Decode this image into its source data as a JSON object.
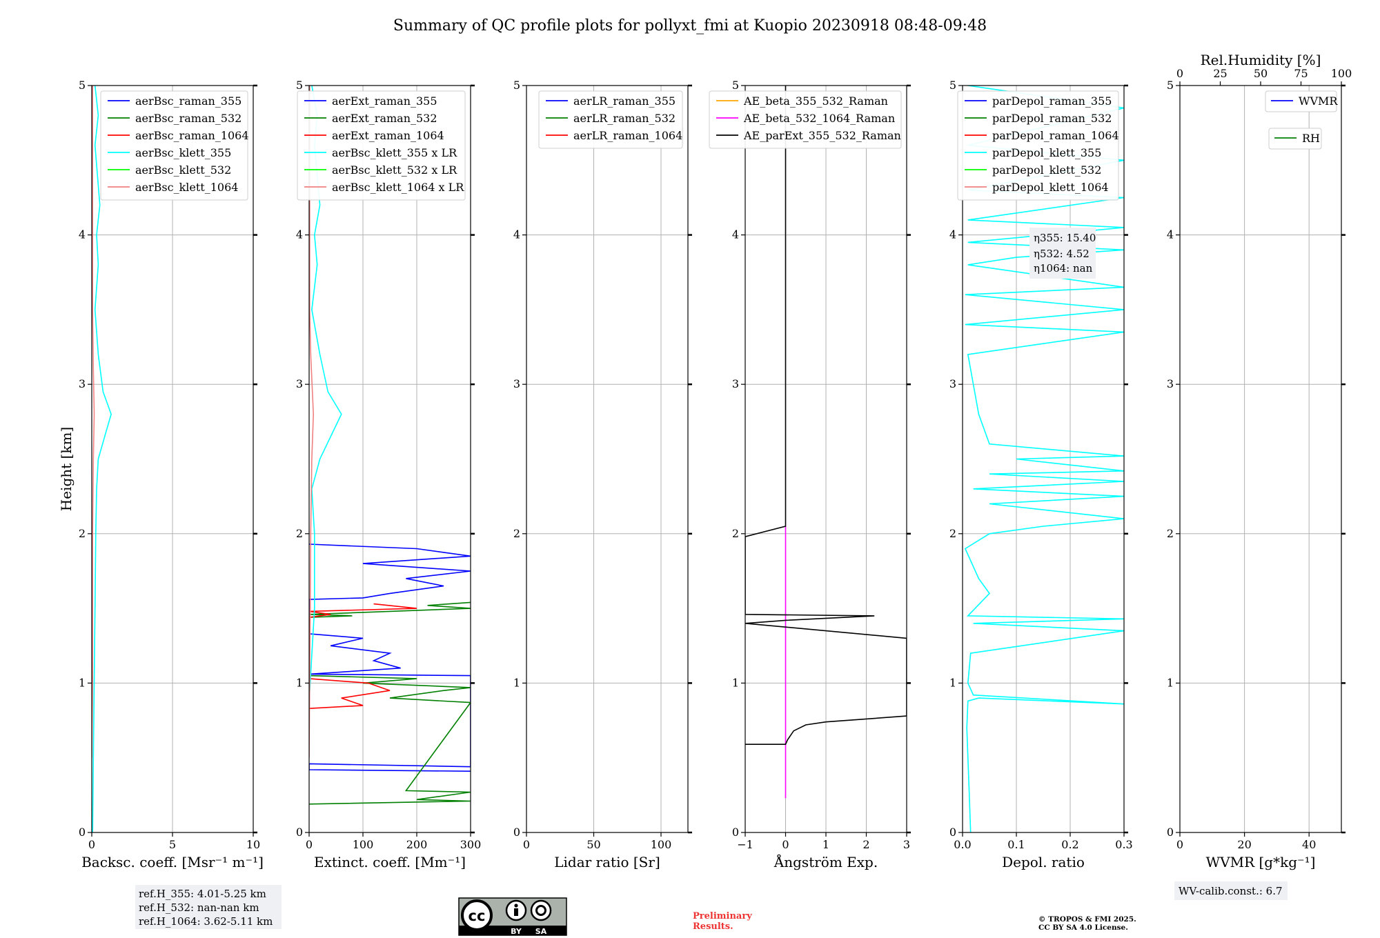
{
  "figure": {
    "title": "Summary of QC profile plots for pollyxt_fmi at Kuopio 20230918 08:48-09:48",
    "ylabel": "Height [km]",
    "ref_lines": [
      "ref.H_355: 4.01-5.25 km",
      "ref.H_532: nan-nan km",
      "ref.H_1064: 3.62-5.11 km"
    ],
    "eta_lines": [
      "η355: 15.40",
      "η532: 4.52",
      "η1064: nan"
    ],
    "wv_calib": "WV-calib.const.: 6.7",
    "preliminary": [
      "Preliminary",
      "Results."
    ],
    "copyright": [
      "© TROPOS & FMI 2025.",
      "CC BY SA 4.0 License."
    ],
    "cc_badge": {
      "by": "BY",
      "sa": "SA",
      "cc": "cc"
    },
    "colors": {
      "blue": "#0000ff",
      "green": "#008000",
      "red": "#ff0000",
      "cyan": "#00ffff",
      "lime": "#00ff00",
      "salmon": "#f08080",
      "orange": "#ffa500",
      "magenta": "#ff00ff",
      "black": "#000000"
    }
  },
  "chart_data": [
    {
      "type": "line",
      "xlabel": "Backsc. coeff. [Msr⁻¹ m⁻¹]",
      "xlim": [
        0,
        10
      ],
      "xticks": [
        "0",
        "5",
        "10"
      ],
      "ylim": [
        0,
        5
      ],
      "yticks": [
        "0",
        "1",
        "2",
        "3",
        "4",
        "5"
      ],
      "grid": true,
      "legend": "top-right",
      "series": [
        {
          "name": "aerBsc_raman_355",
          "color": "blue",
          "points": []
        },
        {
          "name": "aerBsc_raman_532",
          "color": "green",
          "points": []
        },
        {
          "name": "aerBsc_raman_1064",
          "color": "red",
          "points": []
        },
        {
          "name": "aerBsc_klett_355",
          "color": "cyan",
          "points": [
            [
              0.05,
              0
            ],
            [
              0.1,
              0.5
            ],
            [
              0.15,
              1.0
            ],
            [
              0.2,
              1.5
            ],
            [
              0.25,
              2.0
            ],
            [
              0.3,
              2.3
            ],
            [
              0.4,
              2.5
            ],
            [
              0.8,
              2.65
            ],
            [
              1.2,
              2.8
            ],
            [
              0.7,
              2.95
            ],
            [
              0.4,
              3.2
            ],
            [
              0.2,
              3.5
            ],
            [
              0.4,
              3.8
            ],
            [
              0.3,
              4.0
            ],
            [
              0.5,
              4.2
            ],
            [
              0.2,
              4.6
            ],
            [
              0.4,
              4.8
            ],
            [
              0.2,
              5.0
            ]
          ]
        },
        {
          "name": "aerBsc_klett_532",
          "color": "lime",
          "points": []
        },
        {
          "name": "aerBsc_klett_1064",
          "color": "salmon",
          "points": [
            [
              0.0,
              0.5
            ],
            [
              0.05,
              1.0
            ],
            [
              0.05,
              2.0
            ],
            [
              0.1,
              2.5
            ],
            [
              0.15,
              2.8
            ],
            [
              0.1,
              3.1
            ],
            [
              0.05,
              3.5
            ],
            [
              0.05,
              5.0
            ]
          ]
        }
      ]
    },
    {
      "type": "line",
      "xlabel": "Extinct. coeff. [Mm⁻¹]",
      "xlim": [
        0,
        300
      ],
      "xticks": [
        "0",
        "100",
        "200",
        "300"
      ],
      "ylim": [
        0,
        5
      ],
      "yticks": [
        "0",
        "1",
        "2",
        "3",
        "4",
        "5"
      ],
      "grid": true,
      "legend": "top-right",
      "series": [
        {
          "name": "aerExt_raman_355",
          "color": "blue",
          "points": [
            [
              300,
              0.41
            ],
            [
              0,
              0.42
            ],
            [
              0,
              0.46
            ],
            [
              300,
              0.44
            ],
            [
              300,
              1.05
            ],
            [
              0,
              1.06
            ],
            [
              170,
              1.1
            ],
            [
              120,
              1.15
            ],
            [
              150,
              1.2
            ],
            [
              40,
              1.25
            ],
            [
              100,
              1.3
            ],
            [
              0,
              1.33
            ],
            [
              0,
              1.56
            ],
            [
              100,
              1.57
            ],
            [
              150,
              1.6
            ],
            [
              250,
              1.65
            ],
            [
              180,
              1.7
            ],
            [
              300,
              1.75
            ],
            [
              100,
              1.8
            ],
            [
              300,
              1.85
            ],
            [
              200,
              1.9
            ],
            [
              0,
              1.93
            ]
          ]
        },
        {
          "name": "aerExt_raman_532",
          "color": "green",
          "points": [
            [
              0,
              0.19
            ],
            [
              300,
              0.21
            ],
            [
              200,
              0.22
            ],
            [
              300,
              0.27
            ],
            [
              180,
              0.28
            ],
            [
              300,
              0.87
            ],
            [
              150,
              0.9
            ],
            [
              250,
              0.95
            ],
            [
              300,
              0.97
            ],
            [
              100,
              1.0
            ],
            [
              200,
              1.03
            ],
            [
              0,
              1.05
            ],
            [
              0,
              1.44
            ],
            [
              80,
              1.45
            ],
            [
              0,
              1.46
            ],
            [
              300,
              1.5
            ],
            [
              220,
              1.52
            ],
            [
              300,
              1.54
            ]
          ]
        },
        {
          "name": "aerExt_raman_1064",
          "color": "red",
          "points": [
            [
              0,
              0.83
            ],
            [
              100,
              0.85
            ],
            [
              60,
              0.9
            ],
            [
              150,
              0.95
            ],
            [
              110,
              1.0
            ],
            [
              0,
              1.03
            ],
            [
              0,
              1.44
            ],
            [
              40,
              1.46
            ],
            [
              0,
              1.48
            ],
            [
              200,
              1.5
            ],
            [
              120,
              1.53
            ]
          ]
        },
        {
          "name": "aerBsc_klett_355 x LR",
          "color": "cyan",
          "points": [
            [
              0,
              0.88
            ],
            [
              10,
              1.5
            ],
            [
              10,
              2.0
            ],
            [
              5,
              2.3
            ],
            [
              20,
              2.5
            ],
            [
              40,
              2.65
            ],
            [
              60,
              2.8
            ],
            [
              35,
              2.95
            ],
            [
              20,
              3.2
            ],
            [
              5,
              3.5
            ],
            [
              15,
              3.8
            ],
            [
              10,
              4.0
            ],
            [
              20,
              4.2
            ],
            [
              10,
              4.6
            ],
            [
              15,
              4.8
            ],
            [
              5,
              5.0
            ]
          ]
        },
        {
          "name": "aerBsc_klett_532 x LR",
          "color": "lime",
          "points": []
        },
        {
          "name": "aerBsc_klett_1064 x LR",
          "color": "salmon",
          "points": [
            [
              0,
              0.5
            ],
            [
              2,
              1.5
            ],
            [
              3,
              2.0
            ],
            [
              5,
              2.5
            ],
            [
              8,
              2.8
            ],
            [
              3,
              3.2
            ],
            [
              1,
              3.5
            ],
            [
              1,
              5.0
            ]
          ]
        }
      ]
    },
    {
      "type": "line",
      "xlabel": "Lidar ratio [Sr]",
      "xlim": [
        0,
        120
      ],
      "xticks": [
        "0",
        "50",
        "100"
      ],
      "ylim": [
        0,
        5
      ],
      "yticks": [
        "0",
        "1",
        "2",
        "3",
        "4",
        "5"
      ],
      "grid": true,
      "legend": "top-right",
      "series": [
        {
          "name": "aerLR_raman_355",
          "color": "blue",
          "points": []
        },
        {
          "name": "aerLR_raman_532",
          "color": "green",
          "points": []
        },
        {
          "name": "aerLR_raman_1064",
          "color": "red",
          "points": []
        }
      ]
    },
    {
      "type": "line",
      "xlabel": "Ångström Exp.",
      "xlim": [
        -1,
        3
      ],
      "xticks": [
        "−1",
        "0",
        "1",
        "2",
        "3"
      ],
      "ylim": [
        0,
        5
      ],
      "yticks": [
        "0",
        "1",
        "2",
        "3",
        "4",
        "5"
      ],
      "grid": true,
      "legend": "top-right",
      "series": [
        {
          "name": "AE_beta_355_532_Raman",
          "color": "orange",
          "points": []
        },
        {
          "name": "AE_beta_532_1064_Raman",
          "color": "magenta",
          "points": [
            [
              0,
              0.23
            ],
            [
              0,
              2.05
            ]
          ]
        },
        {
          "name": "AE_parExt_355_532_Raman",
          "color": "black",
          "points": [
            [
              -1,
              0.59
            ],
            [
              0,
              0.59
            ],
            [
              0.05,
              0.62
            ],
            [
              0.2,
              0.68
            ],
            [
              0.5,
              0.72
            ],
            [
              1,
              0.74
            ],
            [
              2,
              0.76
            ],
            [
              3,
              0.78
            ],
            [
              3,
              1.3
            ],
            [
              -1,
              1.4
            ],
            [
              0,
              1.42
            ],
            [
              2.2,
              1.45
            ],
            [
              -1,
              1.46
            ],
            [
              -1,
              1.98
            ],
            [
              0,
              2.05
            ],
            [
              0,
              5.0
            ]
          ]
        }
      ]
    },
    {
      "type": "line",
      "xlabel": "Depol. ratio",
      "xlim": [
        0,
        0.3
      ],
      "xticks": [
        "0.0",
        "0.1",
        "0.2",
        "0.3"
      ],
      "ylim": [
        0,
        5
      ],
      "yticks": [
        "0",
        "1",
        "2",
        "3",
        "4",
        "5"
      ],
      "grid": true,
      "legend": "top-right",
      "series": [
        {
          "name": "parDepol_raman_355",
          "color": "blue",
          "points": []
        },
        {
          "name": "parDepol_raman_532",
          "color": "green",
          "points": []
        },
        {
          "name": "parDepol_raman_1064",
          "color": "red",
          "points": []
        },
        {
          "name": "parDepol_klett_355",
          "color": "cyan",
          "points": [
            [
              0.015,
              0.0
            ],
            [
              0.012,
              0.3
            ],
            [
              0.008,
              0.7
            ],
            [
              0.01,
              0.88
            ],
            [
              0.03,
              0.9
            ],
            [
              0.3,
              0.86
            ],
            [
              0.02,
              0.92
            ],
            [
              0.01,
              1.0
            ],
            [
              0.015,
              1.2
            ],
            [
              0.3,
              1.35
            ],
            [
              0.02,
              1.4
            ],
            [
              0.3,
              1.43
            ],
            [
              0.01,
              1.45
            ],
            [
              0.05,
              1.6
            ],
            [
              0.03,
              1.7
            ],
            [
              0.005,
              1.9
            ],
            [
              0.05,
              2.0
            ],
            [
              0.15,
              2.05
            ],
            [
              0.3,
              2.1
            ],
            [
              0.05,
              2.2
            ],
            [
              0.3,
              2.25
            ],
            [
              0.02,
              2.3
            ],
            [
              0.3,
              2.35
            ],
            [
              0.05,
              2.4
            ],
            [
              0.3,
              2.42
            ],
            [
              0.1,
              2.5
            ],
            [
              0.3,
              2.52
            ],
            [
              0.05,
              2.6
            ],
            [
              0.03,
              2.8
            ],
            [
              0.02,
              3.0
            ],
            [
              0.01,
              3.2
            ],
            [
              0.3,
              3.35
            ],
            [
              0.005,
              3.4
            ],
            [
              0.3,
              3.5
            ],
            [
              0.005,
              3.6
            ],
            [
              0.3,
              3.65
            ],
            [
              0.01,
              3.8
            ],
            [
              0.1,
              3.85
            ],
            [
              0.3,
              3.9
            ],
            [
              0.01,
              3.95
            ],
            [
              0.3,
              4.05
            ],
            [
              0.01,
              4.1
            ],
            [
              0.3,
              4.25
            ],
            [
              0.01,
              4.3
            ],
            [
              0.3,
              4.5
            ],
            [
              0.01,
              4.6
            ],
            [
              0.3,
              4.85
            ],
            [
              0.01,
              5.0
            ]
          ]
        },
        {
          "name": "parDepol_klett_532",
          "color": "lime",
          "points": []
        },
        {
          "name": "parDepol_klett_1064",
          "color": "salmon",
          "points": []
        }
      ]
    },
    {
      "type": "line",
      "xlabel": "WVMR [g*kg⁻¹]",
      "xlim": [
        0,
        50
      ],
      "xticks": [
        "0",
        "20",
        "40"
      ],
      "top_xlabel": "Rel.Humidity [%]",
      "top_xlim": [
        0,
        100
      ],
      "top_xticks": [
        "0",
        "25",
        "50",
        "75",
        "100"
      ],
      "ylim": [
        0,
        5
      ],
      "yticks": [
        "0",
        "1",
        "2",
        "3",
        "4",
        "5"
      ],
      "grid": true,
      "legend": "top-right",
      "series": [
        {
          "name": "WVMR",
          "color": "blue",
          "points": []
        },
        {
          "name": "RH",
          "color": "green",
          "points": []
        }
      ]
    }
  ]
}
